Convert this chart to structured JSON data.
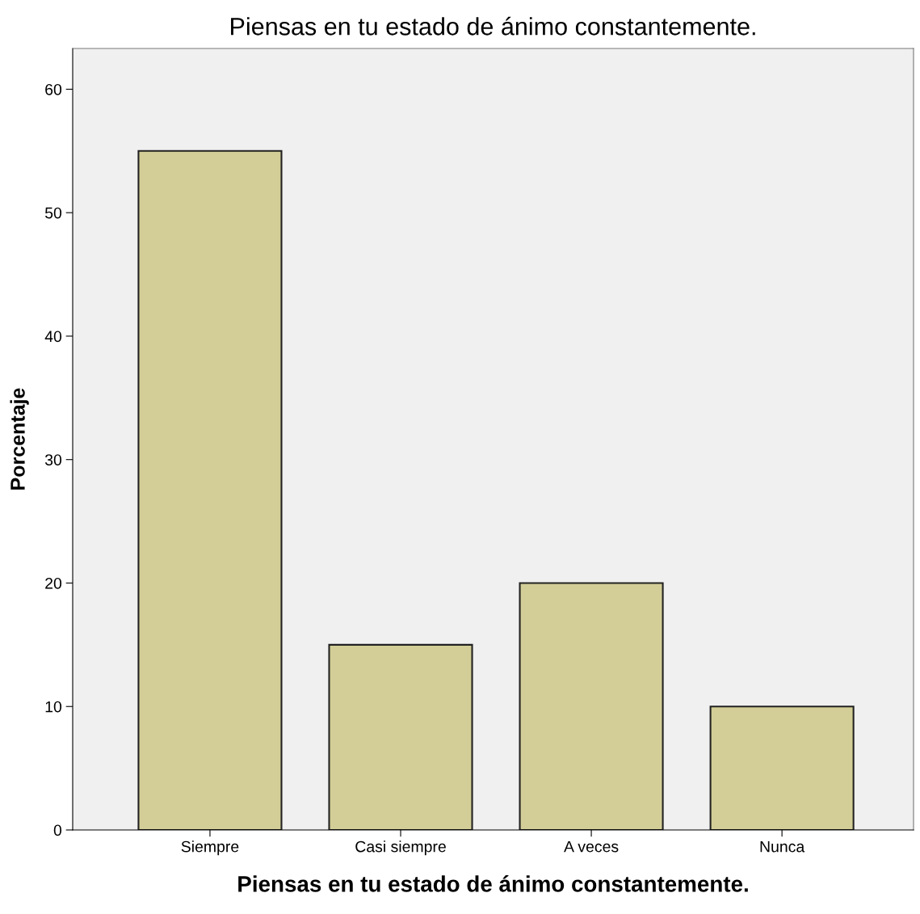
{
  "chart_data": {
    "type": "bar",
    "title": "Piensas en tu estado de ánimo constantemente.",
    "xlabel": "Piensas en tu estado de ánimo constantemente.",
    "ylabel": "Porcentaje",
    "categories": [
      "Siempre",
      "Casi siempre",
      "A veces",
      "Nunca"
    ],
    "values": [
      55,
      15,
      20,
      10
    ],
    "color": "#d3ce97",
    "ylim": [
      0,
      63.3
    ],
    "yticks": [
      0,
      10,
      20,
      30,
      40,
      50,
      60
    ],
    "grid": false,
    "legend": false
  }
}
